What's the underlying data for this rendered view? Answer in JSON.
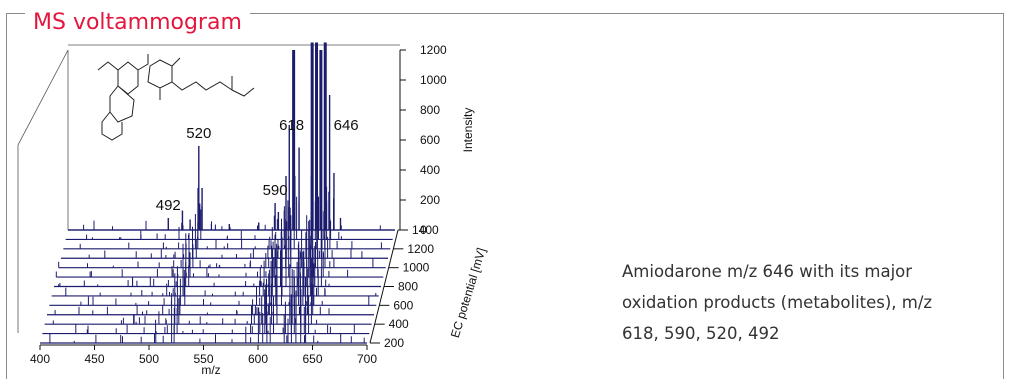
{
  "panel": {
    "title": "MS voltammogram",
    "caption_lines": [
      "Amiodarone m/z 646 with its major",
      "oxidation products (metabolites), m/z",
      "618, 590, 520, 492"
    ]
  },
  "colors": {
    "accent": "#e3173e",
    "trace": "#1c1c6e",
    "frame": "#8c8c8c"
  },
  "icons": {
    "structure": "amiodarone-structure-icon"
  },
  "chart_data": {
    "type": "line",
    "title": "",
    "xlabel": "m/z",
    "ylabel": "Intensity",
    "zlabel": "EC potential [mV]",
    "xlim": [
      400,
      700
    ],
    "ylim": [
      0,
      1200
    ],
    "zlim": [
      200,
      1400
    ],
    "x_ticks": [
      400,
      450,
      500,
      550,
      600,
      650,
      700
    ],
    "y_ticks": [
      0,
      200,
      400,
      600,
      800,
      1000,
      1200
    ],
    "z_ticks": [
      200,
      400,
      600,
      800,
      1000,
      1200,
      1400
    ],
    "traces": 13,
    "grid": false,
    "front_spectrum_peaks": [
      {
        "mz": 492,
        "intensity": 80
      },
      {
        "mz": 505,
        "intensity": 130
      },
      {
        "mz": 512,
        "intensity": 70
      },
      {
        "mz": 520,
        "intensity": 560
      },
      {
        "mz": 523,
        "intensity": 280
      },
      {
        "mz": 548,
        "intensity": 40
      },
      {
        "mz": 575,
        "intensity": 50
      },
      {
        "mz": 590,
        "intensity": 180
      },
      {
        "mz": 593,
        "intensity": 120
      },
      {
        "mz": 600,
        "intensity": 360
      },
      {
        "mz": 603,
        "intensity": 700
      },
      {
        "mz": 607,
        "intensity": 1200
      },
      {
        "mz": 612,
        "intensity": 550
      },
      {
        "mz": 624,
        "intensity": 1250
      },
      {
        "mz": 628,
        "intensity": 1250
      },
      {
        "mz": 632,
        "intensity": 1200
      },
      {
        "mz": 636,
        "intensity": 1250
      },
      {
        "mz": 640,
        "intensity": 900
      },
      {
        "mz": 644,
        "intensity": 380
      },
      {
        "mz": 650,
        "intensity": 80
      }
    ],
    "annotations": [
      {
        "label": "492",
        "mz": 492,
        "intensity": 80
      },
      {
        "label": "520",
        "mz": 520,
        "intensity": 560
      },
      {
        "label": "590",
        "mz": 590,
        "intensity": 180
      },
      {
        "label": "618",
        "mz": 618,
        "intensity": 750
      },
      {
        "label": "646",
        "mz": 646,
        "intensity": 750
      }
    ]
  }
}
